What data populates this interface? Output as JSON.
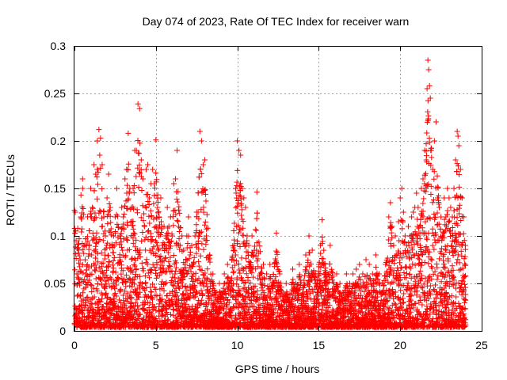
{
  "chart_data": {
    "type": "scatter",
    "title": "Day 074 of 2023, Rate Of TEC Index for receiver warn",
    "xlabel": "GPS time / hours",
    "ylabel": "ROTI / TECUs",
    "xlim": [
      0,
      25
    ],
    "ylim": [
      0,
      0.3
    ],
    "xticks": [
      0,
      5,
      10,
      15,
      20,
      25
    ],
    "xtick_labels": [
      "0",
      "5",
      "10",
      "15",
      "20",
      "25"
    ],
    "yticks": [
      0,
      0.05,
      0.1,
      0.15,
      0.2,
      0.25,
      0.3
    ],
    "ytick_labels": [
      "0",
      "0.05",
      "0.1",
      "0.15",
      "0.2",
      "0.25",
      "0.3"
    ],
    "grid": true,
    "marker": "+",
    "color": "#ff0000",
    "series": [
      {
        "name": "ROTI",
        "points": [
          [
            0.0,
            0.127
          ],
          [
            0.05,
            0.125
          ],
          [
            0.1,
            0.095
          ],
          [
            0.15,
            0.06
          ],
          [
            0.2,
            0.108
          ],
          [
            0.3,
            0.079
          ],
          [
            0.4,
            0.143
          ],
          [
            0.5,
            0.15
          ],
          [
            0.5,
            0.16
          ],
          [
            0.6,
            0.09
          ],
          [
            0.7,
            0.06
          ],
          [
            0.8,
            0.12
          ],
          [
            0.9,
            0.09
          ],
          [
            1.0,
            0.15
          ],
          [
            1.1,
            0.13
          ],
          [
            1.2,
            0.175
          ],
          [
            1.3,
            0.165
          ],
          [
            1.4,
            0.2
          ],
          [
            1.5,
            0.212
          ],
          [
            1.55,
            0.185
          ],
          [
            1.6,
            0.203
          ],
          [
            1.7,
            0.175
          ],
          [
            1.8,
            0.12
          ],
          [
            1.9,
            0.1
          ],
          [
            2.0,
            0.14
          ],
          [
            2.1,
            0.165
          ],
          [
            2.2,
            0.13
          ],
          [
            2.3,
            0.09
          ],
          [
            2.4,
            0.1
          ],
          [
            2.5,
            0.12
          ],
          [
            2.6,
            0.15
          ],
          [
            2.7,
            0.11
          ],
          [
            2.8,
            0.1
          ],
          [
            2.9,
            0.13
          ],
          [
            3.0,
            0.12
          ],
          [
            3.1,
            0.16
          ],
          [
            3.2,
            0.17
          ],
          [
            3.3,
            0.208
          ],
          [
            3.4,
            0.15
          ],
          [
            3.5,
            0.13
          ],
          [
            3.6,
            0.15
          ],
          [
            3.7,
            0.19
          ],
          [
            3.8,
            0.19
          ],
          [
            3.9,
            0.239
          ],
          [
            4.0,
            0.234
          ],
          [
            4.1,
            0.18
          ],
          [
            4.2,
            0.16
          ],
          [
            4.3,
            0.11
          ],
          [
            4.4,
            0.17
          ],
          [
            4.5,
            0.175
          ],
          [
            4.6,
            0.14
          ],
          [
            4.7,
            0.155
          ],
          [
            4.8,
            0.17
          ],
          [
            4.9,
            0.155
          ],
          [
            5.0,
            0.201
          ],
          [
            5.1,
            0.13
          ],
          [
            5.2,
            0.12
          ],
          [
            5.3,
            0.14
          ],
          [
            5.4,
            0.09
          ],
          [
            5.5,
            0.11
          ],
          [
            5.6,
            0.1
          ],
          [
            5.7,
            0.13
          ],
          [
            5.8,
            0.11
          ],
          [
            5.9,
            0.12
          ],
          [
            6.0,
            0.1
          ],
          [
            6.1,
            0.155
          ],
          [
            6.2,
            0.16
          ],
          [
            6.3,
            0.19
          ],
          [
            6.4,
            0.11
          ],
          [
            6.5,
            0.09
          ],
          [
            6.6,
            0.1
          ],
          [
            6.7,
            0.085
          ],
          [
            6.8,
            0.07
          ],
          [
            6.9,
            0.1
          ],
          [
            7.0,
            0.12
          ],
          [
            7.1,
            0.08
          ],
          [
            7.2,
            0.09
          ],
          [
            7.3,
            0.06
          ],
          [
            7.4,
            0.1
          ],
          [
            7.5,
            0.125
          ],
          [
            7.6,
            0.1
          ],
          [
            7.7,
            0.21
          ],
          [
            7.8,
            0.2
          ],
          [
            7.9,
            0.175
          ],
          [
            8.0,
            0.18
          ],
          [
            8.1,
            0.1
          ],
          [
            8.3,
            0.08
          ],
          [
            8.5,
            0.06
          ],
          [
            8.7,
            0.04
          ],
          [
            8.9,
            0.05
          ],
          [
            9.0,
            0.04
          ],
          [
            9.2,
            0.06
          ],
          [
            9.4,
            0.07
          ],
          [
            9.6,
            0.05
          ],
          [
            9.8,
            0.09
          ],
          [
            9.9,
            0.15
          ],
          [
            10.0,
            0.2
          ],
          [
            10.1,
            0.19
          ],
          [
            10.2,
            0.185
          ],
          [
            10.3,
            0.15
          ],
          [
            10.4,
            0.14
          ],
          [
            10.5,
            0.13
          ],
          [
            10.6,
            0.1
          ],
          [
            10.7,
            0.09
          ],
          [
            10.8,
            0.07
          ],
          [
            10.9,
            0.1
          ],
          [
            11.0,
            0.08
          ],
          [
            11.2,
            0.146
          ],
          [
            11.4,
            0.06
          ],
          [
            11.6,
            0.07
          ],
          [
            11.8,
            0.06
          ],
          [
            12.0,
            0.07
          ],
          [
            12.2,
            0.05
          ],
          [
            12.4,
            0.103
          ],
          [
            12.6,
            0.06
          ],
          [
            12.8,
            0.04
          ],
          [
            13.0,
            0.05
          ],
          [
            13.2,
            0.03
          ],
          [
            13.4,
            0.065
          ],
          [
            13.6,
            0.05
          ],
          [
            13.8,
            0.07
          ],
          [
            14.0,
            0.04
          ],
          [
            14.2,
            0.08
          ],
          [
            14.4,
            0.1
          ],
          [
            14.6,
            0.085
          ],
          [
            14.8,
            0.06
          ],
          [
            15.0,
            0.07
          ],
          [
            15.1,
            0.09
          ],
          [
            15.2,
            0.117
          ],
          [
            15.3,
            0.07
          ],
          [
            15.5,
            0.05
          ],
          [
            15.7,
            0.09
          ],
          [
            15.9,
            0.04
          ],
          [
            16.1,
            0.06
          ],
          [
            16.3,
            0.05
          ],
          [
            16.5,
            0.04
          ],
          [
            16.7,
            0.06
          ],
          [
            16.9,
            0.05
          ],
          [
            17.1,
            0.06
          ],
          [
            17.3,
            0.065
          ],
          [
            17.5,
            0.07
          ],
          [
            17.7,
            0.06
          ],
          [
            17.9,
            0.075
          ],
          [
            18.1,
            0.07
          ],
          [
            18.3,
            0.06
          ],
          [
            18.5,
            0.08
          ],
          [
            18.7,
            0.06
          ],
          [
            18.9,
            0.05
          ],
          [
            19.1,
            0.07
          ],
          [
            19.3,
            0.12
          ],
          [
            19.4,
            0.135
          ],
          [
            19.5,
            0.11
          ],
          [
            19.6,
            0.09
          ],
          [
            19.7,
            0.1
          ],
          [
            19.8,
            0.08
          ],
          [
            19.9,
            0.115
          ],
          [
            20.0,
            0.14
          ],
          [
            20.1,
            0.15
          ],
          [
            20.2,
            0.125
          ],
          [
            20.3,
            0.1
          ],
          [
            20.4,
            0.09
          ],
          [
            20.5,
            0.11
          ],
          [
            20.6,
            0.1
          ],
          [
            20.7,
            0.12
          ],
          [
            20.8,
            0.125
          ],
          [
            20.9,
            0.13
          ],
          [
            21.0,
            0.145
          ],
          [
            21.1,
            0.13
          ],
          [
            21.2,
            0.11
          ],
          [
            21.3,
            0.15
          ],
          [
            21.4,
            0.16
          ],
          [
            21.5,
            0.19
          ],
          [
            21.6,
            0.18
          ],
          [
            21.65,
            0.255
          ],
          [
            21.7,
            0.285
          ],
          [
            21.75,
            0.275
          ],
          [
            21.8,
            0.258
          ],
          [
            21.85,
            0.245
          ],
          [
            21.9,
            0.19
          ],
          [
            22.0,
            0.17
          ],
          [
            22.1,
            0.2
          ],
          [
            22.2,
            0.22
          ],
          [
            22.3,
            0.14
          ],
          [
            22.4,
            0.13
          ],
          [
            22.5,
            0.12
          ],
          [
            22.6,
            0.1
          ],
          [
            22.7,
            0.14
          ],
          [
            22.8,
            0.12
          ],
          [
            22.9,
            0.15
          ],
          [
            23.0,
            0.14
          ],
          [
            23.1,
            0.13
          ],
          [
            23.2,
            0.12
          ],
          [
            23.3,
            0.15
          ],
          [
            23.4,
            0.18
          ],
          [
            23.5,
            0.21
          ],
          [
            23.55,
            0.205
          ],
          [
            23.6,
            0.195
          ],
          [
            23.7,
            0.17
          ],
          [
            23.8,
            0.14
          ],
          [
            23.9,
            0.12
          ],
          [
            24.0,
            0.09
          ]
        ]
      }
    ]
  }
}
